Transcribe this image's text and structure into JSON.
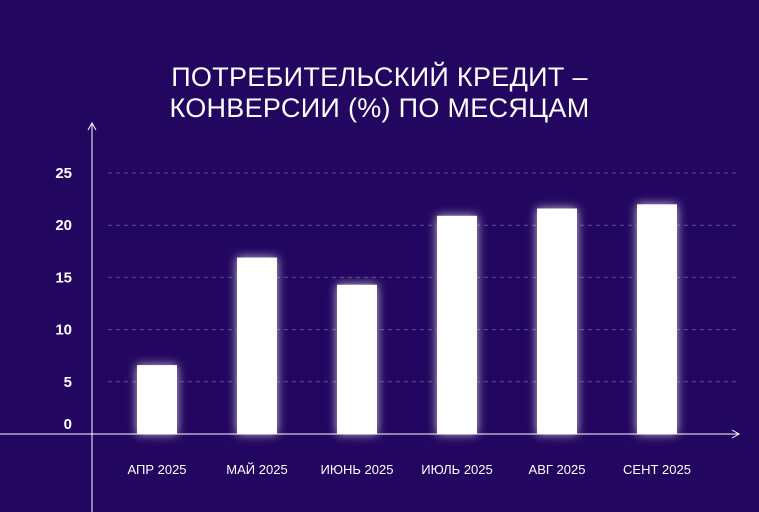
{
  "chart_data": {
    "type": "bar",
    "title_lines": [
      "ПОТРЕБИТЕЛЬСКИЙ КРЕДИТ –",
      "КОНВЕРСИИ (%) ПО МЕСЯЦАМ"
    ],
    "categories": [
      "АПР 2025",
      "МАЙ 2025",
      "ИЮНЬ 2025",
      "ИЮЛЬ 2025",
      "АВГ 2025",
      "СЕНТ 2025"
    ],
    "values": [
      6.6,
      16.9,
      14.3,
      20.9,
      21.6,
      22.0
    ],
    "yticks": [
      "0",
      "5",
      "10",
      "15",
      "20",
      "25"
    ],
    "ylim": [
      0,
      25
    ],
    "grid": true,
    "colors": {
      "background": "#22065f",
      "bar": "#ffffff",
      "grid": "#5b4c8f"
    }
  }
}
